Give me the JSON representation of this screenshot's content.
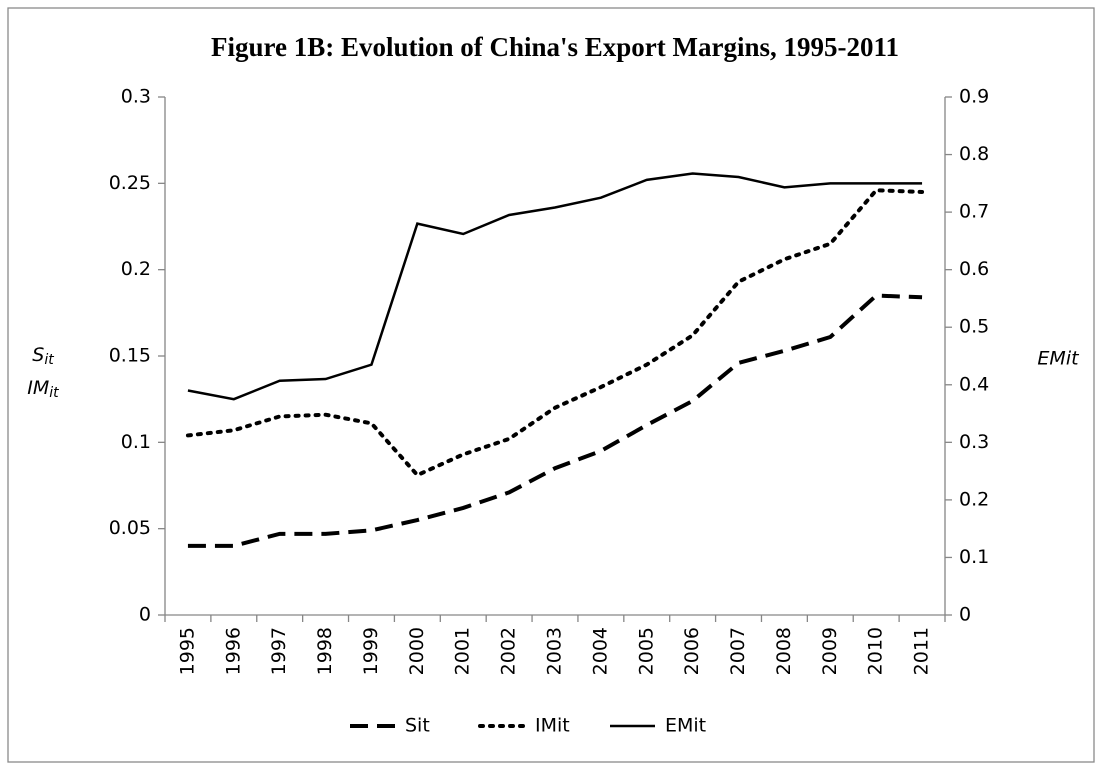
{
  "chart_data": {
    "type": "line",
    "title": "Figure 1B: Evolution of China's Export Margins, 1995-2011",
    "ylabel": [
      {
        "text": "S",
        "sub": "it"
      },
      {
        "text": "IM",
        "sub": "it"
      }
    ],
    "y2label": "EMit",
    "categories": [
      "1995",
      "1996",
      "1997",
      "1998",
      "1999",
      "2000",
      "2001",
      "2002",
      "2003",
      "2004",
      "2005",
      "2006",
      "2007",
      "2008",
      "2009",
      "2010",
      "2011"
    ],
    "series": [
      {
        "name": "Sit",
        "color": "#000000",
        "dash": "dashed",
        "axis": "y",
        "values": [
          0.04,
          0.04,
          0.047,
          0.047,
          0.049,
          0.055,
          0.062,
          0.071,
          0.085,
          0.095,
          0.11,
          0.124,
          0.146,
          0.153,
          0.161,
          0.185,
          0.184
        ]
      },
      {
        "name": "IMit",
        "color": "#000000",
        "dash": "dotted",
        "axis": "y",
        "values": [
          0.104,
          0.107,
          0.115,
          0.116,
          0.111,
          0.081,
          0.093,
          0.102,
          0.12,
          0.132,
          0.145,
          0.162,
          0.193,
          0.206,
          0.215,
          0.246,
          0.245
        ]
      },
      {
        "name": "EMit",
        "color": "#000000",
        "dash": "solid",
        "axis": "y2",
        "values": [
          0.39,
          0.375,
          0.407,
          0.41,
          0.435,
          0.68,
          0.662,
          0.695,
          0.708,
          0.725,
          0.756,
          0.767,
          0.761,
          0.743,
          0.75,
          0.75,
          0.75
        ]
      }
    ],
    "ylim": [
      0,
      0.3
    ],
    "yticks": [
      0,
      0.05,
      0.1,
      0.15,
      0.2,
      0.25,
      0.3
    ],
    "y2lim": [
      0,
      0.9
    ],
    "y2ticks": [
      0,
      0.1,
      0.2,
      0.3,
      0.4,
      0.5,
      0.6,
      0.7,
      0.8,
      0.9
    ],
    "grid": false,
    "legend": "bottom"
  }
}
